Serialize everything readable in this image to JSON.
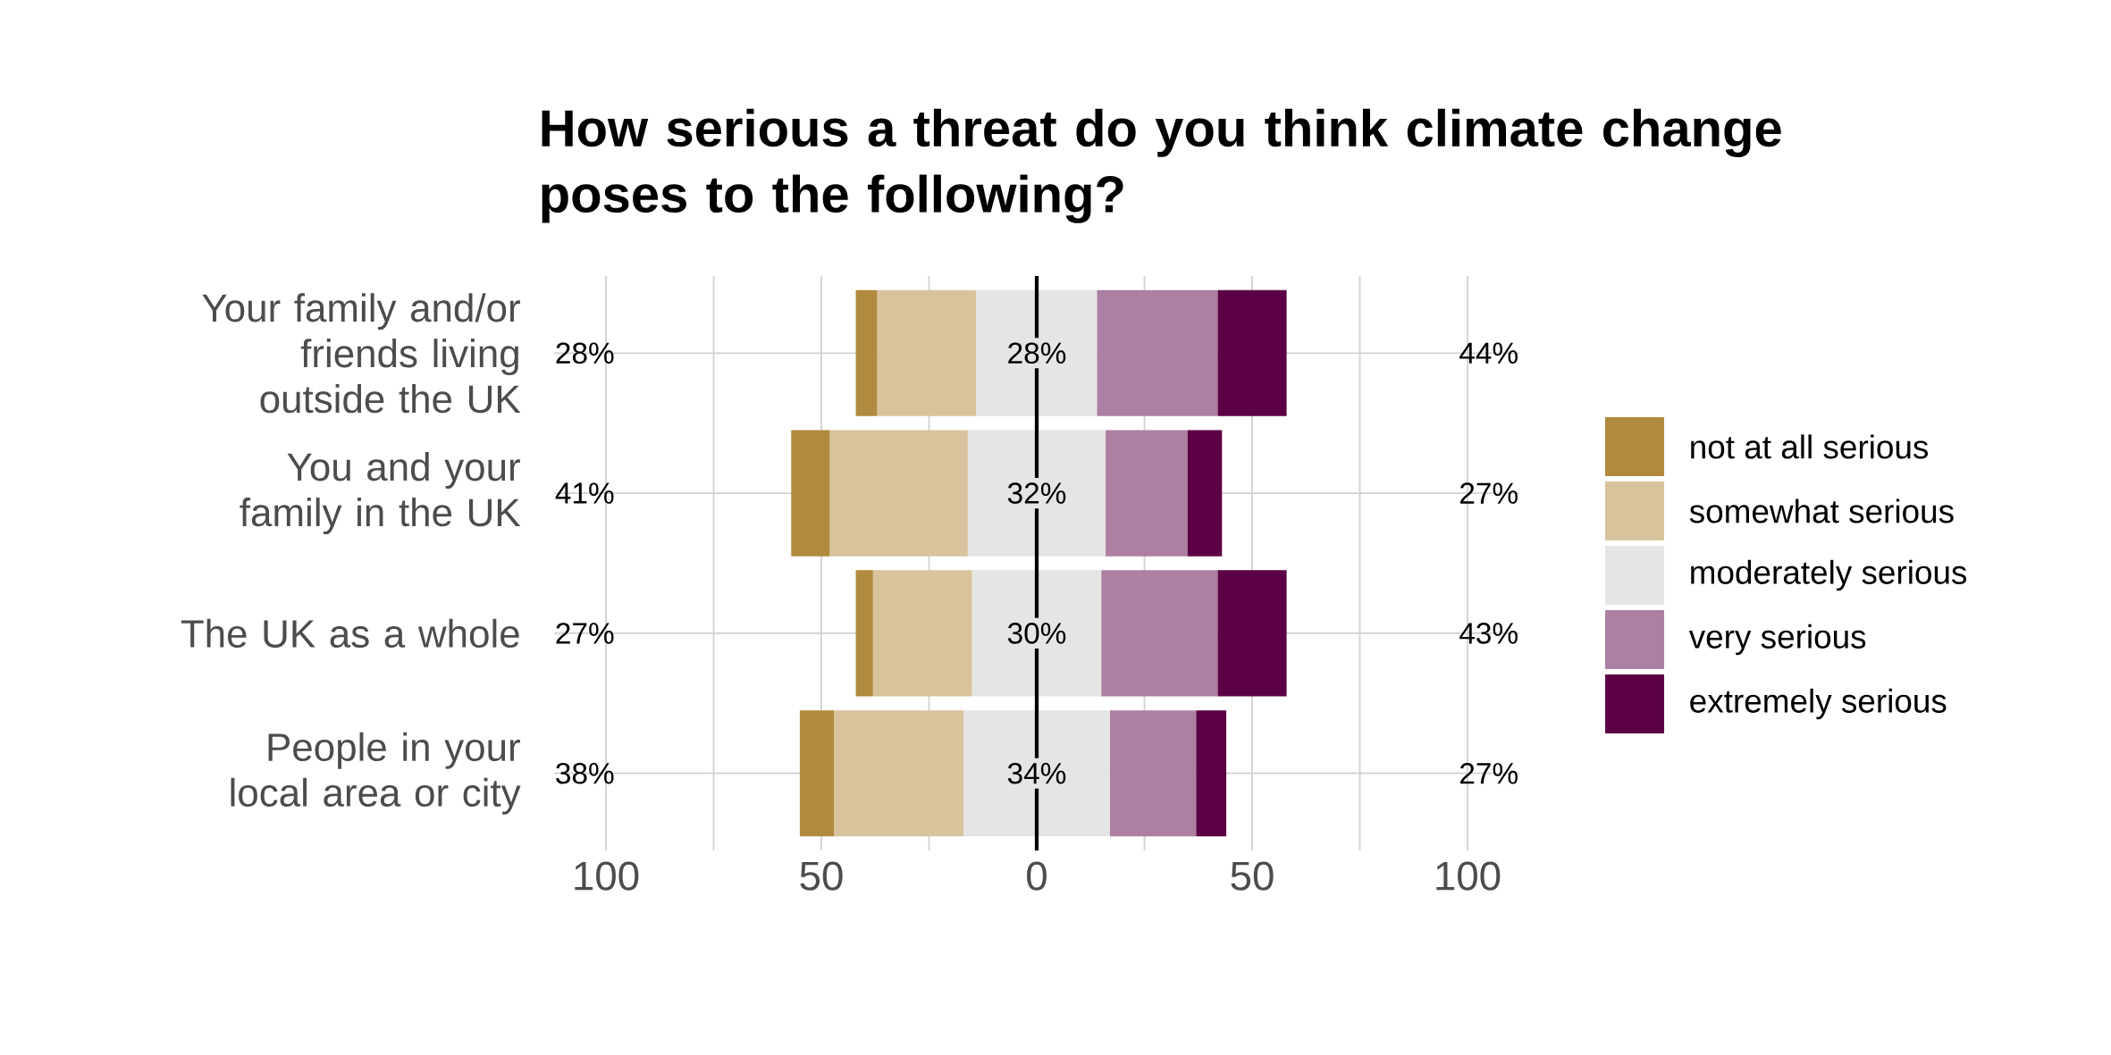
{
  "chart_data": {
    "type": "bar",
    "orientation": "horizontal",
    "title": "How serious a threat do you think climate change poses to the following?",
    "categories": [
      "Your family and/or friends living outside the UK",
      "You and your family in the UK",
      "The UK as a whole",
      "People in your local area or city"
    ],
    "series": [
      {
        "name": "not at all serious",
        "color": "#b08a3e",
        "values": [
          5,
          9,
          4,
          8
        ],
        "base": [
          -42,
          -57,
          -42,
          -55
        ]
      },
      {
        "name": "somewhat serious",
        "color": "#d9c39c",
        "values": [
          23,
          32,
          23,
          30
        ],
        "base": [
          -37,
          -48,
          -38,
          -47
        ]
      },
      {
        "name": "moderately serious",
        "color": "#e5e5e5",
        "values": [
          28,
          32,
          30,
          34
        ],
        "base": [
          -14,
          -16,
          -15,
          -17
        ],
        "value_labels": [
          "28%",
          "32%",
          "30%",
          "34%"
        ]
      },
      {
        "name": "very serious",
        "color": "#ad7fa2",
        "values": [
          28,
          19,
          27,
          20
        ],
        "base": [
          14,
          16,
          15,
          17
        ]
      },
      {
        "name": "extremely serious",
        "color": "#5c0045",
        "values": [
          16,
          8,
          16,
          7
        ],
        "base": [
          42,
          35,
          42,
          37
        ]
      }
    ],
    "xlim": [
      -112,
      112
    ],
    "xticks": [
      {
        "value": -100,
        "label": "100"
      },
      {
        "value": -75,
        "label": null
      },
      {
        "value": -50,
        "label": "50"
      },
      {
        "value": -25,
        "label": null
      },
      0,
      {
        "value": 25,
        "label": null
      },
      {
        "value": 50,
        "label": "50"
      },
      {
        "value": 75,
        "label": null
      },
      {
        "value": 100,
        "label": "100"
      }
    ],
    "grid": true,
    "legend": "right",
    "ref_lines": [
      {
        "axis": "x",
        "value": 0,
        "color": "#000000"
      }
    ],
    "annotations": [
      "28%",
      "44%",
      "41%",
      "27%",
      "27%",
      "43%",
      "38%",
      "27%"
    ]
  }
}
